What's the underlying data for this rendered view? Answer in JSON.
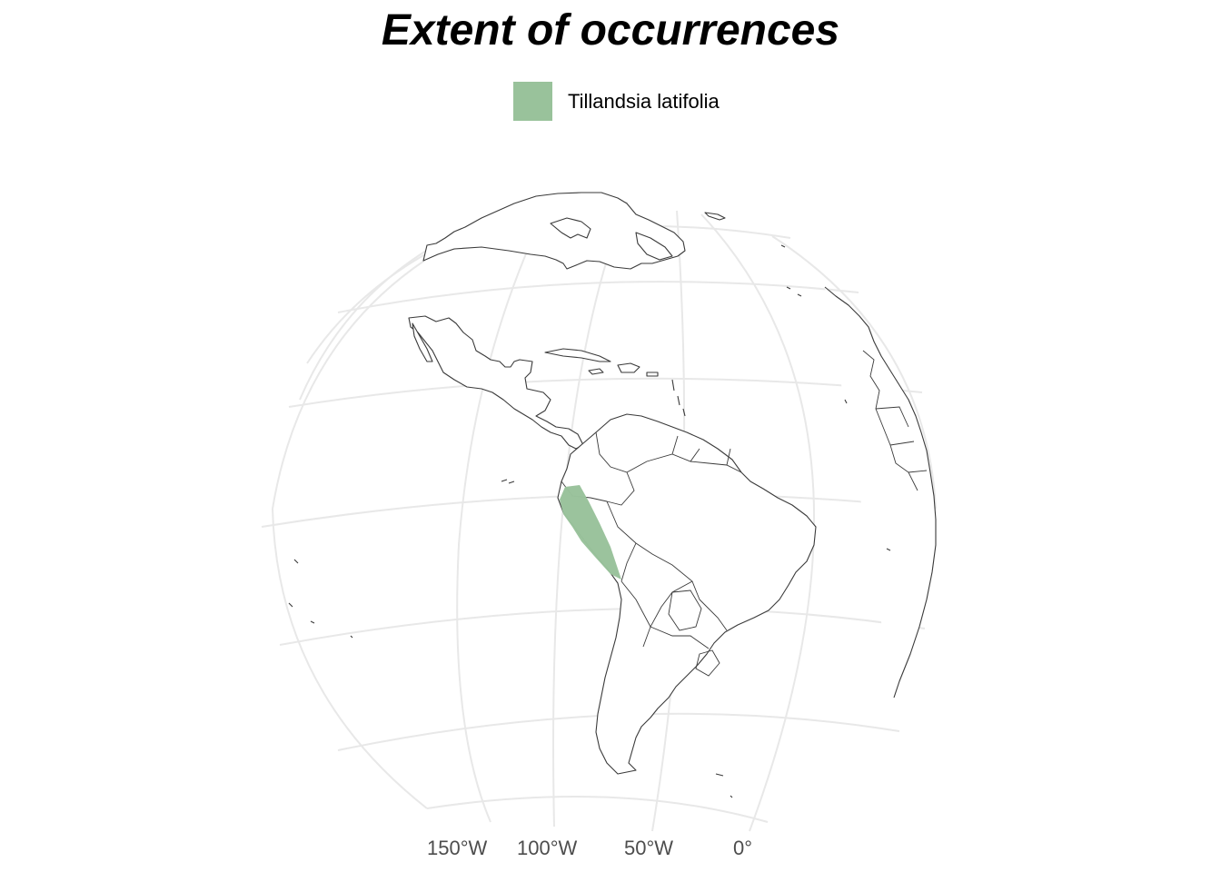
{
  "title": "Extent of occurrences",
  "legend": {
    "label": "Tillandsia latifolia",
    "color": "#99c29b"
  },
  "axis": {
    "lon_labels": [
      "150°W",
      "100°W",
      "50°W",
      "0°"
    ]
  },
  "colors": {
    "graticule": "#e8e8e8",
    "coastline": "#3a3a3a",
    "axis_text": "#4d4d4d",
    "extent_fill": "#99c29b"
  },
  "map": {
    "projection": "orthographic",
    "region": "Americas",
    "extent_region": "Ecuador and Peru (Pacific coast of South America)"
  }
}
